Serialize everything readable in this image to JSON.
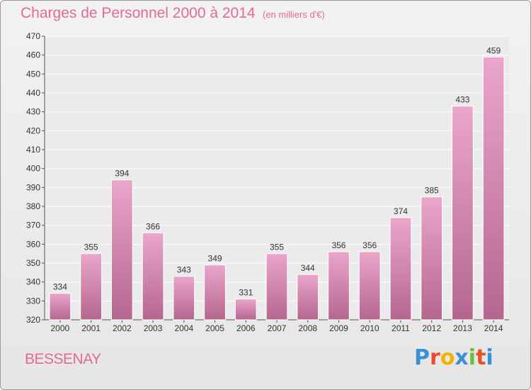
{
  "title": "Charges de Personnel 2000 à 2014",
  "subtitle": "(en milliers d'€)",
  "place": "BESSENAY",
  "logo": {
    "text": "Proxiti",
    "letters": [
      "P",
      "r",
      "o",
      "x",
      "i",
      "t",
      "i"
    ],
    "colors": [
      "#3a8fd6",
      "#e8502a",
      "#f0b400",
      "#3a8fd6",
      "#6cbf3a",
      "#e8502a",
      "#3a8fd6"
    ]
  },
  "colors": {
    "bar_top": "#eaa6cb",
    "bar_bottom": "#b5668f",
    "bar_edge": "#ffffff",
    "text": "#333333",
    "accent": "#e46a8e"
  },
  "chart_data": {
    "type": "bar",
    "title": "Charges de Personnel 2000 à 2014",
    "subtitle": "(en milliers d'€)",
    "xlabel": "",
    "ylabel": "",
    "categories": [
      "2000",
      "2001",
      "2002",
      "2003",
      "2004",
      "2005",
      "2006",
      "2007",
      "2008",
      "2009",
      "2010",
      "2011",
      "2012",
      "2013",
      "2014"
    ],
    "values": [
      334,
      355,
      394,
      366,
      343,
      349,
      331,
      355,
      344,
      356,
      356,
      374,
      385,
      433,
      459
    ],
    "data_labels": [
      "334",
      "355",
      "394",
      "366",
      "343",
      "349",
      "331",
      "355",
      "344",
      "356",
      "356",
      "374",
      "385",
      "433",
      "459"
    ],
    "ylim": [
      320,
      470
    ],
    "yticks": [
      "320",
      "330",
      "340",
      "350",
      "360",
      "370",
      "380",
      "390",
      "400",
      "410",
      "420",
      "430",
      "440",
      "450",
      "460",
      "470"
    ],
    "grid": true
  }
}
